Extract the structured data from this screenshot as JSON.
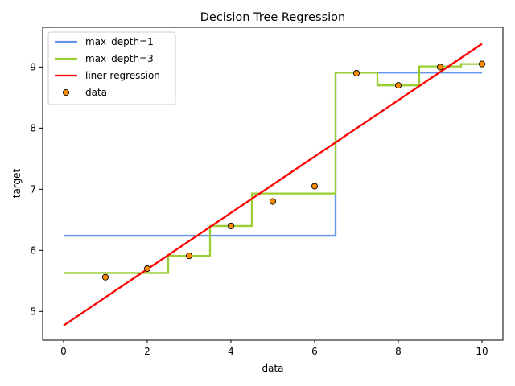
{
  "chart_data": {
    "type": "line",
    "title": "Decision Tree Regression",
    "xlabel": "data",
    "ylabel": "target",
    "xlim": [
      -0.5,
      10.5
    ],
    "ylim": [
      4.53,
      9.65
    ],
    "xticks": [
      0,
      2,
      4,
      6,
      8,
      10
    ],
    "yticks": [
      5,
      6,
      7,
      8,
      9
    ],
    "grid": false,
    "legend_position": "top-left",
    "series": [
      {
        "name": "max_depth=1",
        "style": "step",
        "color": "#6495ED",
        "x": [
          0,
          6.5,
          6.5,
          10
        ],
        "y": [
          6.24,
          6.24,
          8.91,
          8.91
        ]
      },
      {
        "name": "max_depth=3",
        "style": "step",
        "color": "#9ACD32",
        "x": [
          0,
          2.5,
          2.5,
          3.5,
          3.5,
          4.5,
          4.5,
          6.5,
          6.5,
          7.5,
          7.5,
          8.5,
          8.5,
          9.5,
          9.5,
          10
        ],
        "y": [
          5.63,
          5.63,
          5.91,
          5.91,
          6.4,
          6.4,
          6.93,
          6.93,
          8.91,
          8.91,
          8.7,
          8.7,
          9.01,
          9.01,
          9.05,
          9.05
        ]
      },
      {
        "name": "liner regression",
        "style": "line",
        "color": "#FF0000",
        "x": [
          0,
          10
        ],
        "y": [
          4.77,
          9.38
        ]
      },
      {
        "name": "data",
        "style": "scatter",
        "color": "#FF8C00",
        "x": [
          1,
          2,
          3,
          4,
          5,
          6,
          7,
          8,
          9,
          10
        ],
        "y": [
          5.56,
          5.7,
          5.91,
          6.4,
          6.8,
          7.05,
          8.9,
          8.7,
          9.0,
          9.05
        ]
      }
    ]
  }
}
